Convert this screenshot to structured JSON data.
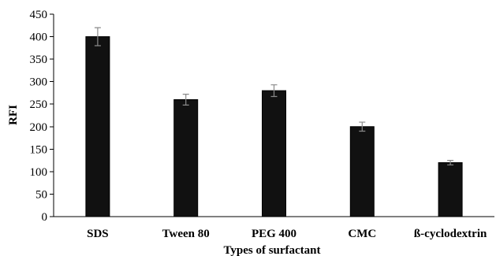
{
  "chart_data": {
    "type": "bar",
    "categories": [
      "SDS",
      "Tween 80",
      "PEG 400",
      "CMC",
      "ß-cyclodextrin"
    ],
    "values": [
      400,
      260,
      280,
      200,
      120
    ],
    "errors": [
      20,
      12,
      13,
      10,
      5
    ],
    "xlabel": "Types of surfactant",
    "ylabel": "RFI",
    "ylim": [
      0,
      450
    ],
    "yticks": [
      0,
      50,
      100,
      150,
      200,
      250,
      300,
      350,
      400,
      450
    ],
    "grid": false,
    "bar_color": "#111111",
    "error_bar_color": "#8a8a8a"
  }
}
